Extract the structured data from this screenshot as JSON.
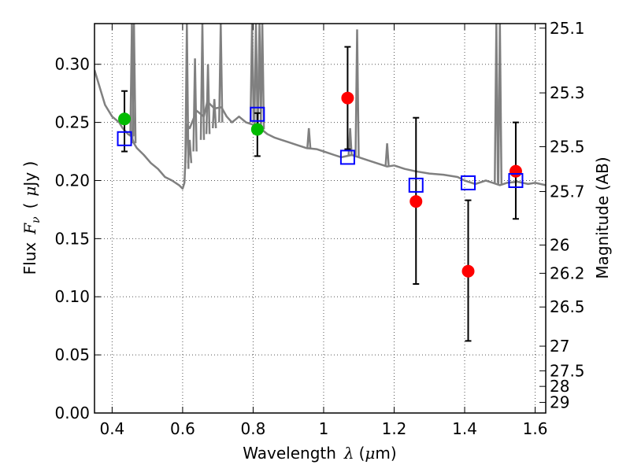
{
  "chart_data": {
    "type": "scatter",
    "xlabel_prefix": "Wavelength",
    "xlabel_symbol": "λ",
    "xlabel_unit_open": "(",
    "xlabel_unit_mu": "μ",
    "xlabel_unit_rest": "m)",
    "ylabel_prefix": "Flux",
    "ylabel_symbol": "F",
    "ylabel_subscript": "ν",
    "ylabel_unit_open": "(",
    "ylabel_unit_mu": "μ",
    "ylabel_unit_rest": "Jy )",
    "y2label": "Magnitude (AB)",
    "xlim": [
      0.35,
      1.63
    ],
    "ylim": [
      0.0,
      0.335
    ],
    "grid": true,
    "x_ticks": [
      0.4,
      0.6,
      0.8,
      1.0,
      1.2,
      1.4,
      1.6
    ],
    "x_tick_labels": [
      "0.4",
      "0.6",
      "0.8",
      "1",
      "1.2",
      "1.4",
      "1.6"
    ],
    "y_ticks": [
      0.0,
      0.05,
      0.1,
      0.15,
      0.2,
      0.25,
      0.3
    ],
    "y_tick_labels": [
      "0.00",
      "0.05",
      "0.10",
      "0.15",
      "0.20",
      "0.25",
      "0.30"
    ],
    "y2_ticks": [
      {
        "label": "25.1",
        "flux": 0.3311
      },
      {
        "label": "25.3",
        "flux": 0.2754
      },
      {
        "label": "25.5",
        "flux": 0.2291
      },
      {
        "label": "25.7",
        "flux": 0.1905
      },
      {
        "label": "26",
        "flux": 0.1445
      },
      {
        "label": "26.2",
        "flux": 0.1202
      },
      {
        "label": "26.5",
        "flux": 0.0912
      },
      {
        "label": "27",
        "flux": 0.0575
      },
      {
        "label": "27.5",
        "flux": 0.0363
      },
      {
        "label": "28",
        "flux": 0.0229
      },
      {
        "label": "29",
        "flux": 0.0091
      }
    ],
    "colors": {
      "model": "#808080",
      "green": "#00bb00",
      "red": "#ff0000",
      "model_phot": "#0000ff",
      "errorbar": "#000000",
      "grid": "#555555"
    },
    "model_spectrum": {
      "x": [
        0.35,
        0.36,
        0.38,
        0.4,
        0.42,
        0.43,
        0.445,
        0.455,
        0.462,
        0.47,
        0.49,
        0.51,
        0.53,
        0.55,
        0.57,
        0.59,
        0.6,
        0.605,
        0.612,
        0.62,
        0.64,
        0.66,
        0.67,
        0.69,
        0.71,
        0.725,
        0.74,
        0.76,
        0.78,
        0.8,
        0.82,
        0.84,
        0.86,
        0.88,
        0.9,
        0.92,
        0.95,
        0.98,
        1.0,
        1.03,
        1.05,
        1.08,
        1.1,
        1.12,
        1.15,
        1.18,
        1.2,
        1.23,
        1.26,
        1.3,
        1.34,
        1.38,
        1.4,
        1.43,
        1.46,
        1.48,
        1.5,
        1.52,
        1.55,
        1.58,
        1.6,
        1.63
      ],
      "y": [
        0.295,
        0.285,
        0.265,
        0.255,
        0.25,
        0.245,
        0.24,
        0.238,
        0.232,
        0.228,
        0.222,
        0.215,
        0.21,
        0.203,
        0.2,
        0.196,
        0.193,
        0.198,
        0.248,
        0.245,
        0.26,
        0.255,
        0.268,
        0.262,
        0.263,
        0.255,
        0.25,
        0.255,
        0.25,
        0.248,
        0.245,
        0.24,
        0.237,
        0.235,
        0.233,
        0.231,
        0.228,
        0.227,
        0.225,
        0.222,
        0.22,
        0.222,
        0.22,
        0.218,
        0.215,
        0.212,
        0.213,
        0.21,
        0.208,
        0.206,
        0.205,
        0.203,
        0.2,
        0.197,
        0.2,
        0.198,
        0.196,
        0.198,
        0.199,
        0.197,
        0.198,
        0.196
      ]
    },
    "model_emission_lines": [
      {
        "x": 0.456,
        "peak": 0.335,
        "base": 0.238
      },
      {
        "x": 0.462,
        "peak": 0.335,
        "base": 0.232
      },
      {
        "x": 0.612,
        "peak": 0.335,
        "base": 0.21
      },
      {
        "x": 0.62,
        "peak": 0.235,
        "base": 0.215
      },
      {
        "x": 0.635,
        "peak": 0.305,
        "base": 0.225
      },
      {
        "x": 0.656,
        "peak": 0.335,
        "base": 0.235
      },
      {
        "x": 0.672,
        "peak": 0.3,
        "base": 0.24
      },
      {
        "x": 0.69,
        "peak": 0.27,
        "base": 0.245
      },
      {
        "x": 0.708,
        "peak": 0.335,
        "base": 0.25
      },
      {
        "x": 0.797,
        "peak": 0.335,
        "base": 0.25
      },
      {
        "x": 0.808,
        "peak": 0.335,
        "base": 0.248
      },
      {
        "x": 0.818,
        "peak": 0.335,
        "base": 0.246
      },
      {
        "x": 0.826,
        "peak": 0.335,
        "base": 0.244
      },
      {
        "x": 0.958,
        "peak": 0.245,
        "base": 0.227
      },
      {
        "x": 1.075,
        "peak": 0.245,
        "base": 0.221
      },
      {
        "x": 1.095,
        "peak": 0.33,
        "base": 0.22
      },
      {
        "x": 1.18,
        "peak": 0.232,
        "base": 0.212
      },
      {
        "x": 1.49,
        "peak": 0.335,
        "base": 0.198
      },
      {
        "x": 1.5,
        "peak": 0.335,
        "base": 0.197
      }
    ],
    "series": [
      {
        "marker": "circle",
        "color": "green",
        "points": [
          {
            "x": 0.435,
            "y": 0.253,
            "yerr_low": 0.028,
            "yerr_high": 0.024
          },
          {
            "x": 0.812,
            "y": 0.244,
            "yerr_low": 0.023,
            "yerr_high": 0.014
          }
        ]
      },
      {
        "marker": "circle",
        "color": "red",
        "points": [
          {
            "x": 1.068,
            "y": 0.271,
            "yerr_low": 0.044,
            "yerr_high": 0.044
          },
          {
            "x": 1.262,
            "y": 0.182,
            "yerr_low": 0.071,
            "yerr_high": 0.072
          },
          {
            "x": 1.41,
            "y": 0.122,
            "yerr_low": 0.06,
            "yerr_high": 0.061
          },
          {
            "x": 1.545,
            "y": 0.208,
            "yerr_low": 0.041,
            "yerr_high": 0.042
          }
        ]
      },
      {
        "marker": "open-square",
        "color": "model_phot",
        "points": [
          {
            "x": 0.435,
            "y": 0.236
          },
          {
            "x": 0.812,
            "y": 0.257
          },
          {
            "x": 1.068,
            "y": 0.22
          },
          {
            "x": 1.262,
            "y": 0.196
          },
          {
            "x": 1.41,
            "y": 0.198
          },
          {
            "x": 1.545,
            "y": 0.2
          }
        ]
      }
    ]
  }
}
